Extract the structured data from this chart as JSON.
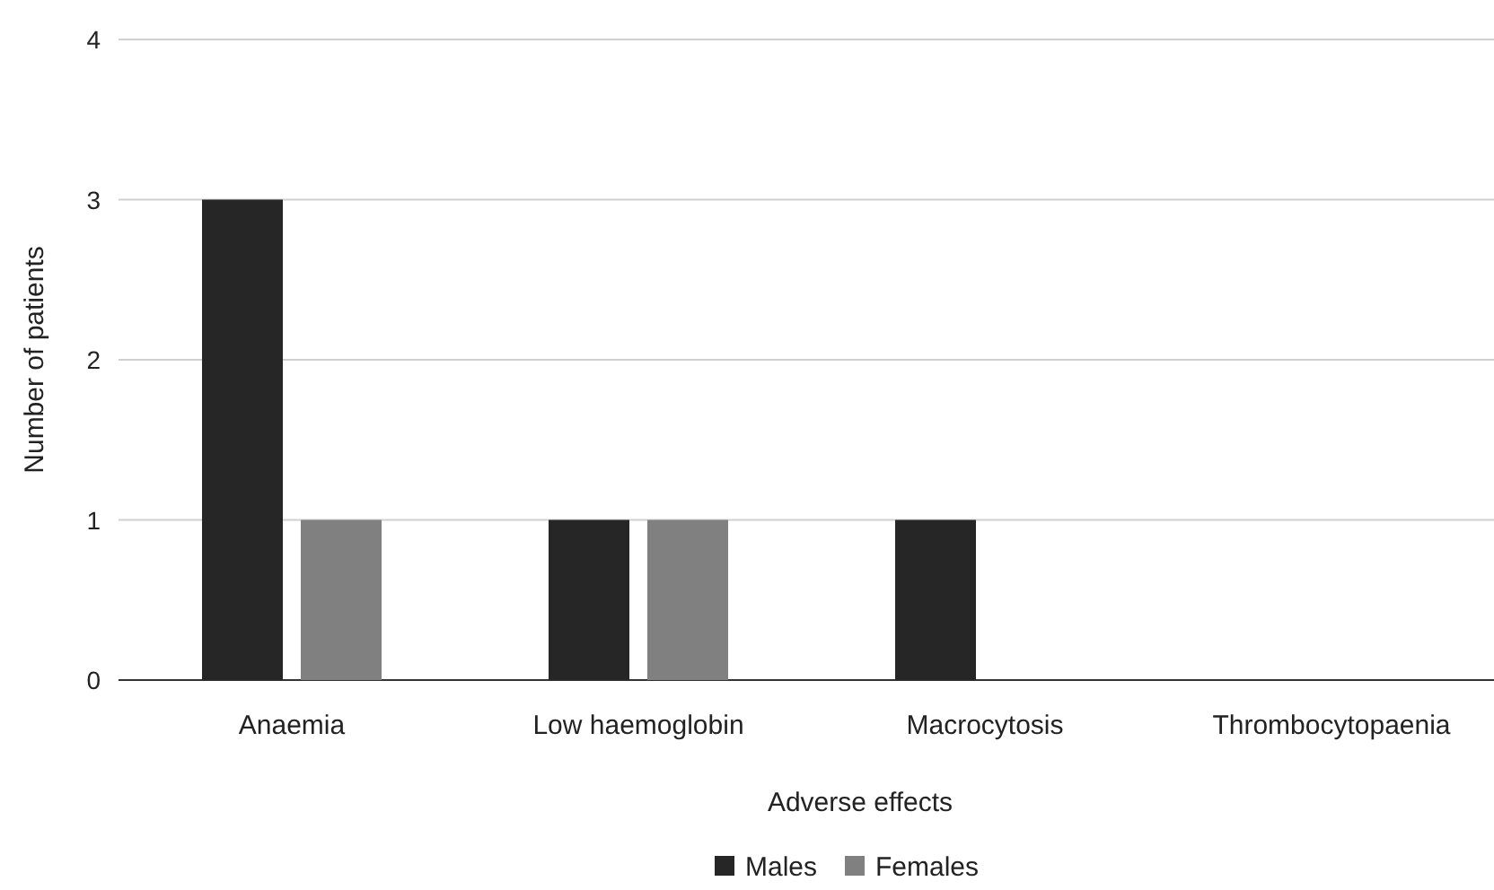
{
  "chart_data": {
    "type": "bar",
    "xlabel": "Adverse effects",
    "ylabel": "Number of patients",
    "categories": [
      "Anaemia",
      "Low haemoglobin",
      "Macrocytosis",
      "Thrombocytopaenia"
    ],
    "series": [
      {
        "name": "Males",
        "color": "#262626",
        "values": [
          3,
          1,
          1,
          0
        ]
      },
      {
        "name": "Females",
        "color": "#808080",
        "values": [
          1,
          1,
          0,
          0
        ]
      }
    ],
    "ylim": [
      0,
      4
    ],
    "yticks": [
      0,
      1,
      2,
      3,
      4
    ],
    "grid": "y",
    "legend": "bottom"
  }
}
